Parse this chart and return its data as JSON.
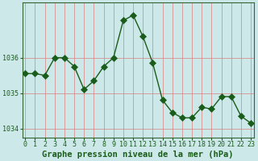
{
  "x": [
    0,
    1,
    2,
    3,
    4,
    5,
    6,
    7,
    8,
    9,
    10,
    11,
    12,
    13,
    14,
    15,
    16,
    17,
    18,
    19,
    20,
    21,
    22,
    23
  ],
  "y": [
    1035.55,
    1035.55,
    1035.5,
    1036.0,
    1036.0,
    1035.75,
    1035.1,
    1035.35,
    1035.75,
    1036.0,
    1037.05,
    1037.2,
    1036.6,
    1035.85,
    1034.8,
    1034.45,
    1034.3,
    1034.3,
    1034.6,
    1034.55,
    1034.9,
    1034.9,
    1034.35,
    1034.15
  ],
  "bg_color": "#cce8e8",
  "line_color": "#1a5c1a",
  "marker_color": "#1a5c1a",
  "grid_color_v": "#d98080",
  "grid_color_h": "#d98080",
  "ylabel_ticks": [
    1034,
    1035,
    1036
  ],
  "xlabel": "Graphe pression niveau de la mer (hPa)",
  "xlabel_fontsize": 7.5,
  "tick_fontsize": 6.0,
  "ylim": [
    1033.75,
    1037.55
  ],
  "xlim": [
    -0.3,
    23.3
  ],
  "border_color": "#336633",
  "marker_size": 4,
  "marker_style": "D"
}
